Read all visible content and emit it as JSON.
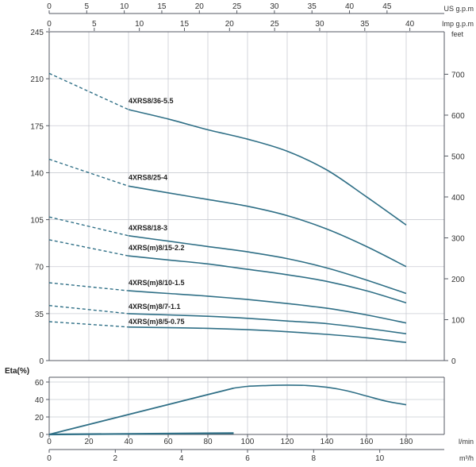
{
  "chart_data": [
    {
      "type": "line",
      "title": "",
      "x_unit": "l/min",
      "y_left_ticks": [
        0,
        35,
        70,
        105,
        140,
        175,
        210,
        245
      ],
      "y_right_unit": "feet",
      "y_right_ticks": [
        0,
        100,
        200,
        300,
        400,
        500,
        600,
        700
      ],
      "top_axis_us": {
        "unit": "US g.p.m",
        "ticks": [
          0,
          5,
          10,
          15,
          20,
          25,
          30,
          35,
          40,
          45
        ]
      },
      "top_axis_imp": {
        "unit": "Imp g.p.m",
        "ticks": [
          0,
          5,
          10,
          15,
          20,
          25,
          30,
          35,
          40
        ]
      },
      "grid": true,
      "series": [
        {
          "name": "4XRS8/36-5.5",
          "dashed_until": 40,
          "x": [
            0,
            40,
            60,
            80,
            100,
            120,
            140,
            160,
            180
          ],
          "y": [
            214,
            187,
            180,
            172,
            165,
            156,
            142,
            122,
            101
          ]
        },
        {
          "name": "4XRS8/25-4",
          "dashed_until": 40,
          "x": [
            0,
            40,
            60,
            80,
            100,
            120,
            140,
            160,
            180
          ],
          "y": [
            150,
            130,
            125,
            120,
            115,
            108,
            98,
            85,
            70
          ]
        },
        {
          "name": "4XRS8/18-3",
          "dashed_until": 40,
          "x": [
            0,
            40,
            60,
            80,
            100,
            120,
            140,
            160,
            180
          ],
          "y": [
            107,
            93,
            89,
            85,
            81,
            76,
            69,
            60,
            50
          ]
        },
        {
          "name": "4XRS(m)8/15-2.2",
          "dashed_until": 40,
          "x": [
            0,
            40,
            60,
            80,
            100,
            120,
            140,
            160,
            180
          ],
          "y": [
            90,
            78,
            75,
            72,
            68,
            64,
            59,
            52,
            43
          ]
        },
        {
          "name": "4XRS(m)8/10-1.5",
          "dashed_until": 40,
          "x": [
            0,
            40,
            60,
            80,
            100,
            120,
            140,
            160,
            180
          ],
          "y": [
            58,
            52,
            50,
            48,
            45.5,
            42.5,
            39,
            34,
            28
          ]
        },
        {
          "name": "4XRS(m)8/7-1.1",
          "dashed_until": 40,
          "x": [
            0,
            40,
            60,
            80,
            100,
            120,
            140,
            160,
            180
          ],
          "y": [
            41,
            35,
            34,
            33,
            31.5,
            29.5,
            27.5,
            24,
            20
          ]
        },
        {
          "name": "4XRS(m)8/5-0.75",
          "dashed_until": 40,
          "x": [
            0,
            40,
            60,
            80,
            100,
            120,
            140,
            160,
            180
          ],
          "y": [
            29,
            25,
            24.5,
            24,
            23,
            21.5,
            19.5,
            17,
            13.5
          ]
        }
      ]
    },
    {
      "type": "line",
      "ylabel": "Eta(%)",
      "ylim": [
        0,
        65
      ],
      "y_ticks": [
        0,
        20,
        40,
        60
      ],
      "x_ticks": [
        0,
        20,
        40,
        60,
        80,
        100,
        120,
        140,
        160,
        180
      ],
      "x_unit": "l/min",
      "x2_ticks": [
        0,
        2,
        4,
        6,
        8,
        10
      ],
      "x2_unit": "m³/h",
      "grid": true,
      "series": [
        {
          "x": [
            0,
            93,
            100,
            110,
            120,
            130,
            140,
            150,
            160,
            170,
            180
          ],
          "y": [
            0,
            53,
            55,
            56,
            56.5,
            56,
            54,
            50,
            44,
            38,
            34
          ]
        },
        {
          "x": [
            0,
            93
          ],
          "y": [
            0,
            1.5
          ]
        }
      ]
    }
  ]
}
